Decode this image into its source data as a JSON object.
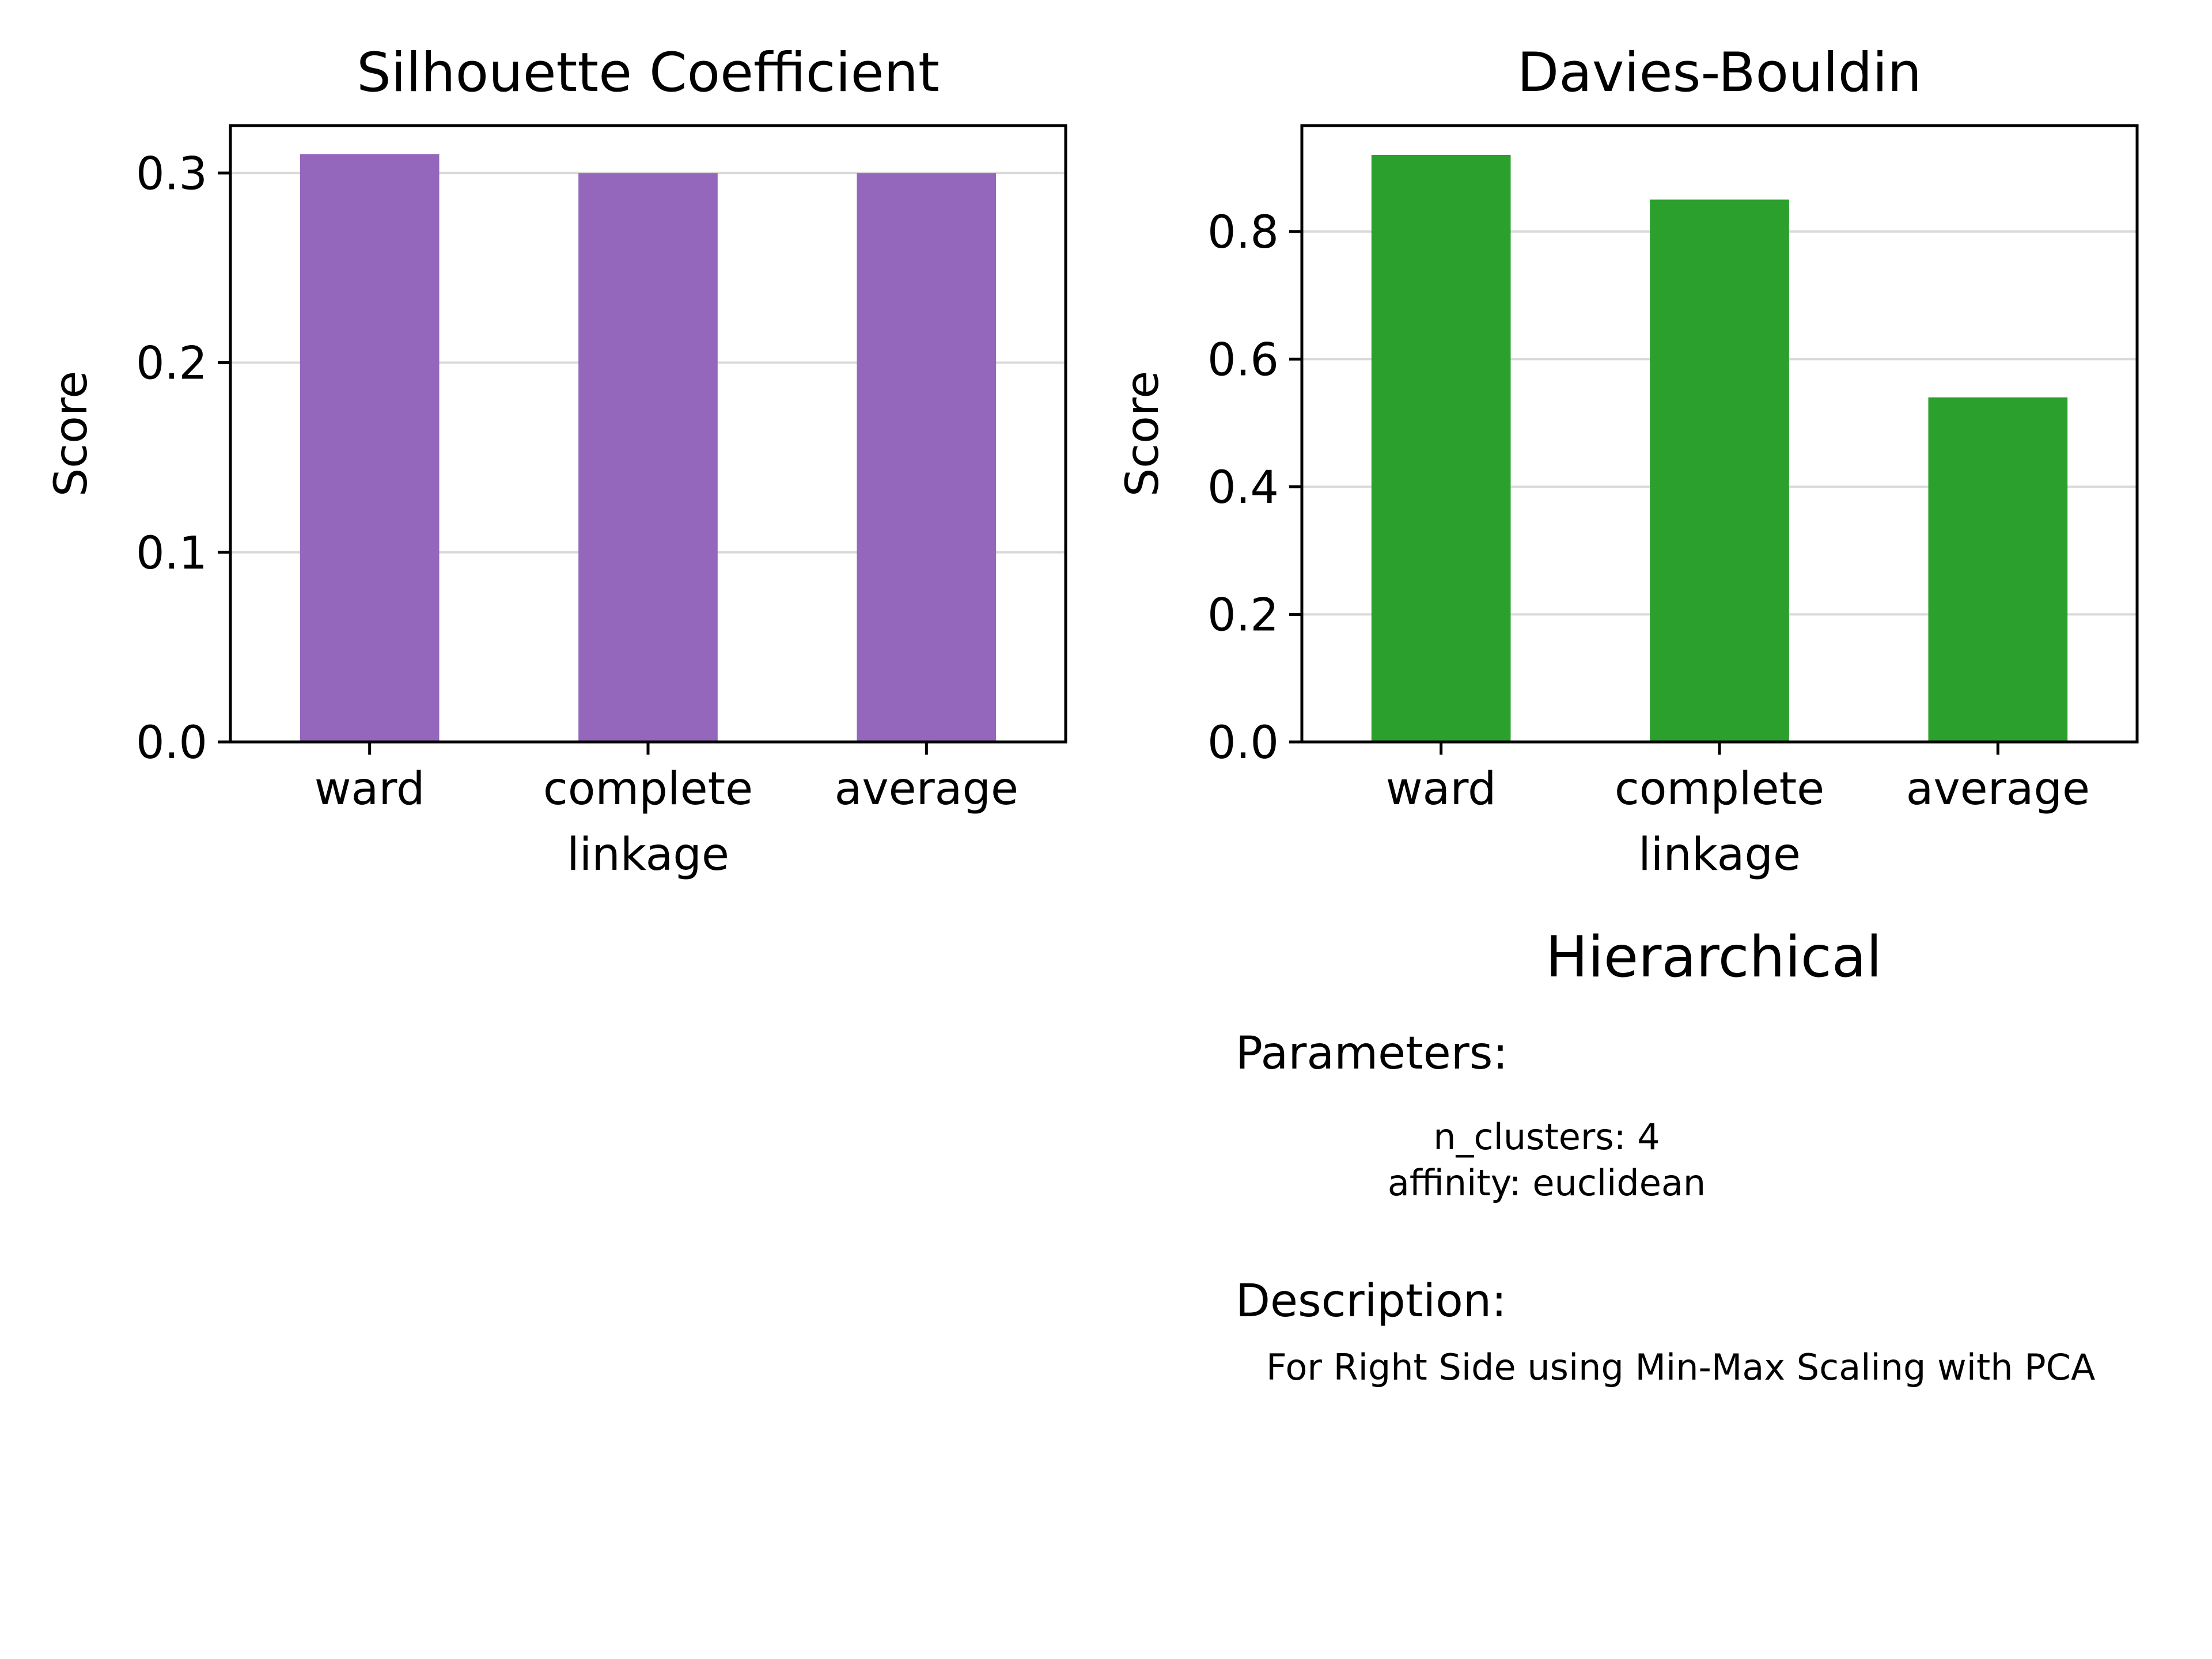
{
  "chart_data": [
    {
      "type": "bar",
      "title": "Silhouette Coefficient",
      "xlabel": "linkage",
      "ylabel": "Score",
      "categories": [
        "ward",
        "complete",
        "average"
      ],
      "values": [
        0.31,
        0.3,
        0.3
      ],
      "ylim": [
        0,
        0.325
      ],
      "yticks": [
        0.0,
        0.1,
        0.2,
        0.3
      ],
      "ytick_labels": [
        "0.0",
        "0.1",
        "0.2",
        "0.3"
      ],
      "grid": "y",
      "color": "#9467bd"
    },
    {
      "type": "bar",
      "title": "Davies-Bouldin",
      "xlabel": "linkage",
      "ylabel": "Score",
      "categories": [
        "ward",
        "complete",
        "average"
      ],
      "values": [
        0.92,
        0.85,
        0.54
      ],
      "ylim": [
        0,
        0.966
      ],
      "yticks": [
        0.0,
        0.2,
        0.4,
        0.6,
        0.8
      ],
      "ytick_labels": [
        "0.0",
        "0.2",
        "0.4",
        "0.6",
        "0.8"
      ],
      "grid": "y",
      "color": "#2ca02c"
    }
  ],
  "info_panel": {
    "title": "Hierarchical",
    "parameters_heading": "Parameters:",
    "parameters": [
      "n_clusters: 4",
      "affinity: euclidean"
    ],
    "description_heading": "Description:",
    "description": "For Right Side using Min-Max Scaling with PCA"
  },
  "colors": {
    "grid": "#d9d9d9",
    "axis": "#000000"
  }
}
